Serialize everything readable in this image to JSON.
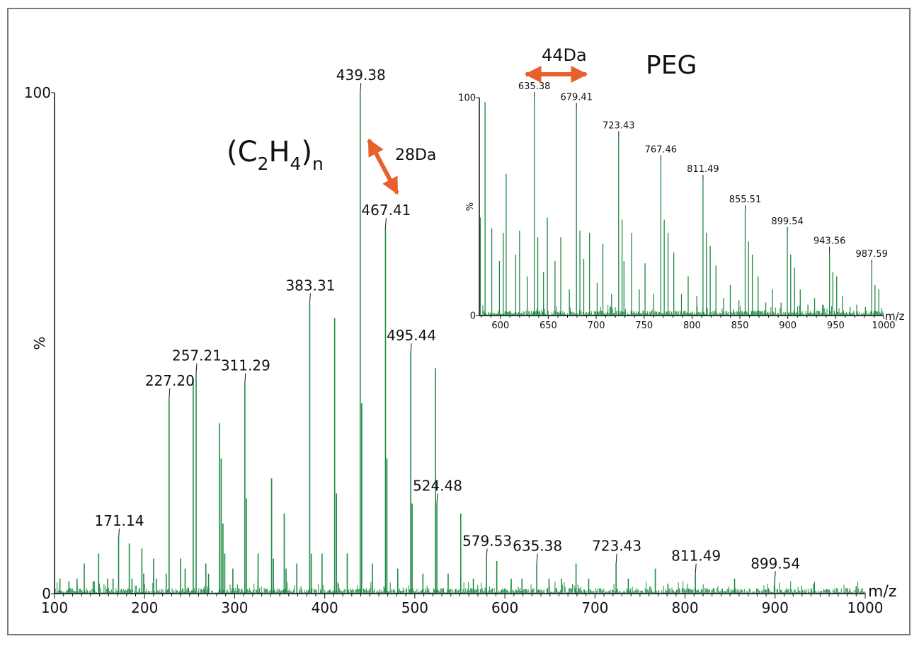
{
  "chart_data": [
    {
      "type": "bar",
      "panel": "main",
      "xlabel": "m/z",
      "ylabel": "%",
      "xlim": [
        100,
        1000
      ],
      "ylim": [
        0,
        100
      ],
      "xticks": [
        100,
        200,
        300,
        400,
        500,
        600,
        700,
        800,
        900,
        1000
      ],
      "yticks": [
        0,
        100
      ],
      "annotations": [
        "(C2H4)n",
        "28Da"
      ],
      "labeled_peaks": [
        {
          "x": 171.14,
          "y": 11,
          "label": "171.14"
        },
        {
          "x": 227.2,
          "y": 39,
          "label": "227.20"
        },
        {
          "x": 257.21,
          "y": 44,
          "label": "257.21"
        },
        {
          "x": 311.29,
          "y": 42,
          "label": "311.29"
        },
        {
          "x": 383.31,
          "y": 58,
          "label": "383.31"
        },
        {
          "x": 439.38,
          "y": 100,
          "label": "439.38"
        },
        {
          "x": 467.41,
          "y": 73,
          "label": "467.41"
        },
        {
          "x": 495.44,
          "y": 48,
          "label": "495.44"
        },
        {
          "x": 524.48,
          "y": 18,
          "label": "524.48"
        },
        {
          "x": 579.53,
          "y": 7,
          "label": "579.53"
        },
        {
          "x": 635.38,
          "y": 6,
          "label": "635.38"
        },
        {
          "x": 723.43,
          "y": 6,
          "label": "723.43"
        },
        {
          "x": 811.49,
          "y": 4,
          "label": "811.49"
        },
        {
          "x": 899.54,
          "y": 2.5,
          "label": "899.54"
        }
      ],
      "peaks": [
        {
          "x": 106,
          "y": 3
        },
        {
          "x": 116,
          "y": 2.5
        },
        {
          "x": 125,
          "y": 3
        },
        {
          "x": 133,
          "y": 6
        },
        {
          "x": 144,
          "y": 2.5
        },
        {
          "x": 149,
          "y": 8
        },
        {
          "x": 159,
          "y": 3
        },
        {
          "x": 165,
          "y": 3
        },
        {
          "x": 183,
          "y": 10
        },
        {
          "x": 186,
          "y": 3
        },
        {
          "x": 197,
          "y": 9
        },
        {
          "x": 199,
          "y": 4
        },
        {
          "x": 210,
          "y": 7
        },
        {
          "x": 213,
          "y": 3
        },
        {
          "x": 224,
          "y": 4
        },
        {
          "x": 240,
          "y": 7
        },
        {
          "x": 245,
          "y": 5
        },
        {
          "x": 254,
          "y": 43
        },
        {
          "x": 268,
          "y": 6
        },
        {
          "x": 271,
          "y": 4
        },
        {
          "x": 283,
          "y": 34
        },
        {
          "x": 285,
          "y": 27
        },
        {
          "x": 287,
          "y": 14
        },
        {
          "x": 289,
          "y": 8
        },
        {
          "x": 298,
          "y": 5
        },
        {
          "x": 313,
          "y": 19
        },
        {
          "x": 326,
          "y": 8
        },
        {
          "x": 341,
          "y": 23
        },
        {
          "x": 343,
          "y": 7
        },
        {
          "x": 355,
          "y": 16
        },
        {
          "x": 357,
          "y": 5
        },
        {
          "x": 369,
          "y": 6
        },
        {
          "x": 385,
          "y": 8
        },
        {
          "x": 397,
          "y": 8
        },
        {
          "x": 411,
          "y": 55
        },
        {
          "x": 413,
          "y": 20
        },
        {
          "x": 425,
          "y": 8
        },
        {
          "x": 441,
          "y": 38
        },
        {
          "x": 453,
          "y": 6
        },
        {
          "x": 469,
          "y": 27
        },
        {
          "x": 481,
          "y": 5
        },
        {
          "x": 497,
          "y": 18
        },
        {
          "x": 509,
          "y": 4
        },
        {
          "x": 523,
          "y": 45
        },
        {
          "x": 537,
          "y": 4
        },
        {
          "x": 551,
          "y": 16
        },
        {
          "x": 565,
          "y": 3
        },
        {
          "x": 591,
          "y": 6.5
        },
        {
          "x": 607,
          "y": 3
        },
        {
          "x": 619,
          "y": 3
        },
        {
          "x": 649,
          "y": 3
        },
        {
          "x": 663,
          "y": 3
        },
        {
          "x": 679,
          "y": 6
        },
        {
          "x": 693,
          "y": 3
        },
        {
          "x": 737,
          "y": 3
        },
        {
          "x": 767,
          "y": 5
        },
        {
          "x": 781,
          "y": 2
        },
        {
          "x": 855,
          "y": 3
        },
        {
          "x": 943,
          "y": 2
        },
        {
          "x": 990,
          "y": 1.5
        }
      ]
    },
    {
      "type": "bar",
      "panel": "inset",
      "title": "PEG",
      "xlabel": "m/z",
      "ylabel": "%",
      "xlim": [
        578,
        1000
      ],
      "ylim": [
        0,
        100
      ],
      "xticks": [
        600,
        650,
        700,
        750,
        800,
        850,
        900,
        950,
        1000
      ],
      "yticks": [
        0,
        100
      ],
      "annotations": [
        "44Da"
      ],
      "labeled_peaks": [
        {
          "x": 635.38,
          "y": 100,
          "label": "635.38"
        },
        {
          "x": 679.41,
          "y": 95,
          "label": "679.41"
        },
        {
          "x": 723.43,
          "y": 82,
          "label": "723.43"
        },
        {
          "x": 767.46,
          "y": 71,
          "label": "767.46"
        },
        {
          "x": 811.49,
          "y": 62,
          "label": "811.49"
        },
        {
          "x": 855.51,
          "y": 48,
          "label": "855.51"
        },
        {
          "x": 899.54,
          "y": 38,
          "label": "899.54"
        },
        {
          "x": 943.56,
          "y": 29,
          "label": "943.56"
        },
        {
          "x": 987.59,
          "y": 23,
          "label": "987.59"
        }
      ],
      "peaks": [
        {
          "x": 579,
          "y": 45
        },
        {
          "x": 584,
          "y": 98
        },
        {
          "x": 591,
          "y": 40
        },
        {
          "x": 599,
          "y": 25
        },
        {
          "x": 603,
          "y": 38
        },
        {
          "x": 606,
          "y": 65
        },
        {
          "x": 616,
          "y": 28
        },
        {
          "x": 620,
          "y": 39
        },
        {
          "x": 628,
          "y": 18
        },
        {
          "x": 639,
          "y": 36
        },
        {
          "x": 645,
          "y": 20
        },
        {
          "x": 649,
          "y": 45
        },
        {
          "x": 657,
          "y": 25
        },
        {
          "x": 663,
          "y": 36
        },
        {
          "x": 672,
          "y": 12
        },
        {
          "x": 683,
          "y": 39
        },
        {
          "x": 687,
          "y": 26
        },
        {
          "x": 693,
          "y": 38
        },
        {
          "x": 701,
          "y": 15
        },
        {
          "x": 707,
          "y": 33
        },
        {
          "x": 716,
          "y": 10
        },
        {
          "x": 727,
          "y": 44
        },
        {
          "x": 729,
          "y": 25
        },
        {
          "x": 737,
          "y": 38
        },
        {
          "x": 745,
          "y": 12
        },
        {
          "x": 751,
          "y": 24
        },
        {
          "x": 760,
          "y": 10
        },
        {
          "x": 771,
          "y": 44
        },
        {
          "x": 775,
          "y": 38
        },
        {
          "x": 781,
          "y": 29
        },
        {
          "x": 789,
          "y": 10
        },
        {
          "x": 796,
          "y": 18
        },
        {
          "x": 805,
          "y": 9
        },
        {
          "x": 815,
          "y": 38
        },
        {
          "x": 819,
          "y": 32
        },
        {
          "x": 825,
          "y": 23
        },
        {
          "x": 833,
          "y": 8
        },
        {
          "x": 840,
          "y": 14
        },
        {
          "x": 849,
          "y": 7
        },
        {
          "x": 859,
          "y": 34
        },
        {
          "x": 863,
          "y": 28
        },
        {
          "x": 869,
          "y": 18
        },
        {
          "x": 877,
          "y": 6
        },
        {
          "x": 884,
          "y": 12
        },
        {
          "x": 893,
          "y": 6
        },
        {
          "x": 903,
          "y": 28
        },
        {
          "x": 907,
          "y": 22
        },
        {
          "x": 913,
          "y": 12
        },
        {
          "x": 921,
          "y": 5
        },
        {
          "x": 928,
          "y": 8
        },
        {
          "x": 937,
          "y": 5
        },
        {
          "x": 947,
          "y": 20
        },
        {
          "x": 951,
          "y": 18
        },
        {
          "x": 957,
          "y": 9
        },
        {
          "x": 965,
          "y": 4
        },
        {
          "x": 972,
          "y": 5
        },
        {
          "x": 981,
          "y": 4
        },
        {
          "x": 991,
          "y": 14
        },
        {
          "x": 995,
          "y": 12
        }
      ]
    }
  ],
  "labels": {
    "formula_open": "(C",
    "formula_sub1": "2",
    "formula_mid": "H",
    "formula_sub2": "4",
    "formula_close": ")",
    "formula_subn": "n",
    "delta_28": "28Da",
    "delta_44": "44Da",
    "peg": "PEG"
  },
  "colors": {
    "peak": "#1f8a45",
    "arrow": "#e8602c",
    "axis": "#111111"
  }
}
